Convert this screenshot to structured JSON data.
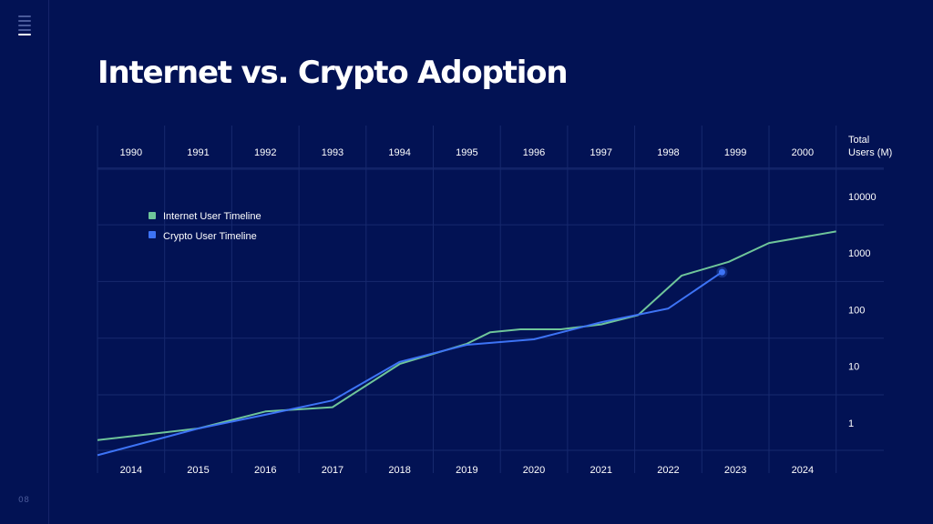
{
  "page": {
    "title": "Internet vs. Crypto Adoption",
    "page_number": "08"
  },
  "colors": {
    "background": "#021254",
    "grid": "#17296e",
    "internet": "#6fc59a",
    "crypto": "#3d73f5"
  },
  "icons": {
    "menu": "menu-icon"
  },
  "chart_data": {
    "type": "line",
    "title": "Internet vs. Crypto Adoption",
    "y_axis": {
      "label_line1": "Total",
      "label_line2": "Users (M)",
      "scale": "log",
      "ticks": [
        1,
        10,
        100,
        1000,
        10000
      ],
      "tick_labels": [
        "1",
        "10",
        "100",
        "1000",
        "10000"
      ],
      "ylim": [
        0.2,
        30000
      ]
    },
    "x_axis_top": {
      "series": "Internet User Timeline",
      "categories": [
        "1990",
        "1991",
        "1992",
        "1993",
        "1994",
        "1995",
        "1996",
        "1997",
        "1998",
        "1999",
        "2000"
      ]
    },
    "x_axis_bottom": {
      "series": "Crypto User Timeline",
      "categories": [
        "2014",
        "2015",
        "2016",
        "2017",
        "2018",
        "2019",
        "2020",
        "2021",
        "2022",
        "2023",
        "2024"
      ]
    },
    "grid": true,
    "legend": {
      "placement": "top-left"
    },
    "series": [
      {
        "name": "Internet User Timeline",
        "axis": "top",
        "points": [
          {
            "x": 1989.5,
            "y": 0.5
          },
          {
            "x": 1991,
            "y": 0.8
          },
          {
            "x": 1992,
            "y": 1.6
          },
          {
            "x": 1993,
            "y": 1.9
          },
          {
            "x": 1994,
            "y": 11
          },
          {
            "x": 1995,
            "y": 25
          },
          {
            "x": 1995.35,
            "y": 40
          },
          {
            "x": 1995.8,
            "y": 45
          },
          {
            "x": 1996.4,
            "y": 45
          },
          {
            "x": 1997,
            "y": 55
          },
          {
            "x": 1997.55,
            "y": 80
          },
          {
            "x": 1998.2,
            "y": 400
          },
          {
            "x": 1998.9,
            "y": 700
          },
          {
            "x": 1999.5,
            "y": 1500
          },
          {
            "x": 2000.5,
            "y": 2400
          }
        ]
      },
      {
        "name": "Crypto User Timeline",
        "axis": "bottom",
        "points": [
          {
            "x": 2013.5,
            "y": 0.27
          },
          {
            "x": 2015,
            "y": 0.8
          },
          {
            "x": 2016,
            "y": 1.4
          },
          {
            "x": 2017,
            "y": 2.5
          },
          {
            "x": 2018,
            "y": 12
          },
          {
            "x": 2019,
            "y": 24
          },
          {
            "x": 2020,
            "y": 30
          },
          {
            "x": 2021,
            "y": 60
          },
          {
            "x": 2022,
            "y": 105
          },
          {
            "x": 2022.8,
            "y": 460
          }
        ],
        "end_marker": true
      }
    ]
  }
}
